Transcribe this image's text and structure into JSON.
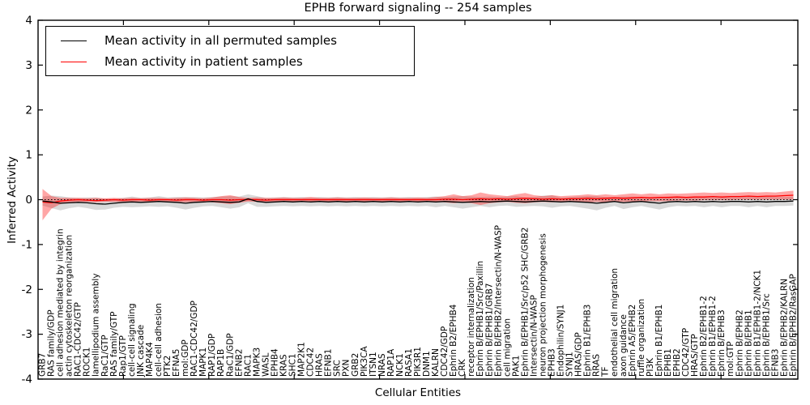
{
  "window": {
    "description": "matplotlib-style line chart figure"
  },
  "legend": {
    "permuted_label": "Mean activity in all permuted samples",
    "patient_label": "Mean activity in patient samples"
  },
  "colors": {
    "permuted_line": "#000000",
    "patient_line": "#ff0000",
    "permuted_band": "rgba(0,0,0,0.15)",
    "patient_band": "rgba(255,0,0,0.35)",
    "axis": "#000000",
    "background": "#ffffff"
  },
  "chart_data": {
    "type": "line",
    "title": "EPHB forward signaling -- 254 samples",
    "xlabel": "Cellular Entities",
    "ylabel": "Inferred Activity",
    "ylim": [
      -4,
      4
    ],
    "yticks": [
      -4,
      -3,
      -2,
      -1,
      0,
      1,
      2,
      3,
      4
    ],
    "grid": false,
    "zero_line_dotted": true,
    "legend_position": "upper left",
    "x_tick_label_rotation": 90,
    "categories": [
      "GRB7",
      "RAS family/GDP",
      "cell adhesion mediated by integrin",
      "actin cytoskeleton reorganization",
      "RAC1-CDC42/GTP",
      "ROCK1",
      "lamellipodium assembly",
      "RaC1/GTP",
      "RAS family/GTP",
      "Rap1/GTP",
      "cell-cell signaling",
      "JNK cascade",
      "MAP4K4",
      "cell-cell adhesion",
      "PTK2",
      "EFNA5",
      "mol:GDP",
      "RAC1-CDC42/GDP",
      "MAPK1",
      "RAP1/GDP",
      "RAP1B",
      "RaC1/GDP",
      "EFNB2",
      "RAC1",
      "MAPK3",
      "WASL",
      "EPHB4",
      "KRAS",
      "SHC1",
      "MAP2K1",
      "CDC42",
      "HRAS",
      "EFNB1",
      "SRC",
      "PXN",
      "GRB2",
      "PIK3CA",
      "ITSN1",
      "NRAS",
      "RAP1A",
      "NCK1",
      "RASA1",
      "PIK3R1",
      "DNM1",
      "KALRN",
      "CDC42/GDP",
      "Ephrin B2/EPHB4",
      "CRK",
      "receptor internalization",
      "Ephrin B/EPHB1/Src/Paxillin",
      "Ephrin B/EPHB1/GRB7",
      "Ephrin B/EPHB2/Intersectin/N-WASP",
      "cell migration",
      "PAK1",
      "Ephrin B/EPHB1/Src/p52 SHC/GRB2",
      "Intersectin/N-WASP",
      "neuron projection morphogenesis",
      "EPHB3",
      "Endophilin/SYNJ1",
      "SYNJ1",
      "HRAS/GDP",
      "Ephrin B1/EPHB3",
      "RRAS",
      "TF",
      "endothelial cell migration",
      "axon guidance",
      "Ephrin A5/EPHB2",
      "ruffle organization",
      "PI3K",
      "Ephrin B1/EPHB1",
      "EPHB1",
      "EPHB2",
      "CDC42/GTP",
      "HRAS/GTP",
      "Ephrin B2/EPHB1-2",
      "Ephrin B1/EPHB1-2",
      "Ephrin B/EPHB3",
      "mol:GTP",
      "Ephrin B/EPHB2",
      "Ephrin B/EPHB1",
      "Ephrin B1/EPHB1-2/NCK1",
      "Ephrin B/EPHB1/Src",
      "EFNB3",
      "Ephrin B/EPHB2/KALRN",
      "Ephrin B/EPHB2/RasGAP"
    ],
    "series": [
      {
        "name": "Mean activity in all permuted samples",
        "color": "#000000",
        "band_color": "rgba(0,0,0,0.15)",
        "values": [
          -0.03,
          -0.05,
          -0.08,
          -0.07,
          -0.06,
          -0.07,
          -0.09,
          -0.1,
          -0.08,
          -0.06,
          -0.05,
          -0.06,
          -0.05,
          -0.04,
          -0.05,
          -0.06,
          -0.08,
          -0.06,
          -0.05,
          -0.04,
          -0.05,
          -0.06,
          -0.05,
          0.02,
          -0.04,
          -0.06,
          -0.05,
          -0.04,
          -0.05,
          -0.04,
          -0.05,
          -0.04,
          -0.05,
          -0.04,
          -0.05,
          -0.04,
          -0.05,
          -0.04,
          -0.05,
          -0.04,
          -0.05,
          -0.04,
          -0.05,
          -0.04,
          -0.05,
          -0.04,
          -0.05,
          -0.06,
          -0.05,
          -0.04,
          -0.05,
          -0.04,
          -0.03,
          -0.04,
          -0.05,
          -0.04,
          -0.03,
          -0.04,
          -0.05,
          -0.04,
          -0.05,
          -0.06,
          -0.08,
          -0.06,
          -0.04,
          -0.07,
          -0.05,
          -0.04,
          -0.06,
          -0.08,
          -0.05,
          -0.04,
          -0.05,
          -0.04,
          -0.05,
          -0.04,
          -0.05,
          -0.04,
          -0.04,
          -0.05,
          -0.04,
          -0.05,
          -0.04,
          -0.04,
          -0.03
        ],
        "band_halfwidth": [
          0.1,
          0.14,
          0.16,
          0.12,
          0.1,
          0.12,
          0.14,
          0.12,
          0.1,
          0.1,
          0.12,
          0.1,
          0.1,
          0.12,
          0.1,
          0.12,
          0.14,
          0.12,
          0.1,
          0.1,
          0.12,
          0.14,
          0.12,
          0.1,
          0.12,
          0.1,
          0.1,
          0.1,
          0.1,
          0.1,
          0.1,
          0.1,
          0.1,
          0.1,
          0.1,
          0.1,
          0.1,
          0.1,
          0.1,
          0.1,
          0.1,
          0.1,
          0.1,
          0.1,
          0.12,
          0.1,
          0.12,
          0.14,
          0.12,
          0.1,
          0.12,
          0.1,
          0.1,
          0.12,
          0.1,
          0.1,
          0.12,
          0.14,
          0.1,
          0.1,
          0.12,
          0.14,
          0.16,
          0.12,
          0.1,
          0.14,
          0.12,
          0.1,
          0.12,
          0.14,
          0.12,
          0.1,
          0.1,
          0.1,
          0.12,
          0.1,
          0.12,
          0.1,
          0.1,
          0.12,
          0.1,
          0.12,
          0.1,
          0.1,
          0.1
        ]
      },
      {
        "name": "Mean activity in patient samples",
        "color": "#ff0000",
        "band_color": "rgba(255,0,0,0.35)",
        "values": [
          -0.05,
          -0.07,
          -0.03,
          -0.01,
          0.0,
          -0.01,
          -0.02,
          -0.01,
          0.0,
          -0.01,
          0.0,
          0.0,
          -0.01,
          0.0,
          0.0,
          -0.01,
          0.0,
          0.0,
          -0.01,
          0.0,
          0.0,
          -0.01,
          0.0,
          0.0,
          0.0,
          -0.01,
          0.0,
          0.0,
          0.0,
          0.0,
          0.0,
          0.0,
          0.0,
          0.0,
          0.0,
          0.0,
          0.0,
          0.0,
          0.0,
          0.0,
          0.0,
          0.0,
          0.0,
          0.0,
          0.0,
          0.01,
          0.01,
          0.0,
          0.01,
          0.02,
          0.01,
          0.02,
          0.01,
          0.02,
          0.03,
          0.02,
          0.01,
          0.02,
          0.01,
          0.02,
          0.02,
          0.03,
          0.02,
          0.03,
          0.04,
          0.03,
          0.04,
          0.05,
          0.04,
          0.05,
          0.05,
          0.06,
          0.05,
          0.06,
          0.06,
          0.07,
          0.06,
          0.07,
          0.07,
          0.08,
          0.07,
          0.08,
          0.08,
          0.09,
          0.1
        ],
        "band_hi": [
          0.24,
          0.08,
          0.04,
          0.04,
          0.04,
          0.03,
          0.04,
          0.03,
          0.04,
          0.03,
          0.04,
          0.03,
          0.04,
          0.04,
          0.03,
          0.04,
          0.05,
          0.04,
          0.03,
          0.05,
          0.08,
          0.1,
          0.06,
          0.04,
          0.05,
          0.04,
          0.04,
          0.05,
          0.04,
          0.04,
          0.06,
          0.04,
          0.04,
          0.05,
          0.04,
          0.04,
          0.05,
          0.04,
          0.04,
          0.05,
          0.04,
          0.04,
          0.05,
          0.04,
          0.06,
          0.08,
          0.12,
          0.08,
          0.1,
          0.16,
          0.12,
          0.1,
          0.08,
          0.12,
          0.15,
          0.1,
          0.08,
          0.1,
          0.08,
          0.09,
          0.1,
          0.12,
          0.1,
          0.12,
          0.1,
          0.12,
          0.14,
          0.12,
          0.14,
          0.12,
          0.14,
          0.13,
          0.14,
          0.15,
          0.16,
          0.15,
          0.16,
          0.15,
          0.16,
          0.17,
          0.16,
          0.17,
          0.16,
          0.18,
          0.2
        ],
        "band_lo": [
          -0.46,
          -0.2,
          -0.1,
          -0.06,
          -0.05,
          -0.05,
          -0.06,
          -0.05,
          -0.05,
          -0.05,
          -0.05,
          -0.04,
          -0.05,
          -0.05,
          -0.04,
          -0.05,
          -0.06,
          -0.05,
          -0.05,
          -0.06,
          -0.08,
          -0.1,
          -0.07,
          -0.04,
          -0.05,
          -0.05,
          -0.04,
          -0.05,
          -0.04,
          -0.04,
          -0.05,
          -0.04,
          -0.04,
          -0.05,
          -0.04,
          -0.04,
          -0.05,
          -0.04,
          -0.04,
          -0.05,
          -0.04,
          -0.04,
          -0.05,
          -0.04,
          -0.05,
          -0.06,
          -0.08,
          -0.06,
          -0.08,
          -0.12,
          -0.08,
          -0.06,
          -0.05,
          -0.07,
          -0.08,
          -0.06,
          -0.05,
          -0.06,
          -0.05,
          -0.05,
          -0.05,
          -0.06,
          -0.05,
          -0.06,
          -0.04,
          -0.05,
          -0.04,
          -0.04,
          -0.03,
          -0.04,
          -0.03,
          -0.02,
          -0.02,
          -0.02,
          -0.01,
          -0.01,
          -0.01,
          -0.01,
          0.0,
          0.0,
          0.0,
          0.0,
          0.0,
          0.0,
          0.0
        ]
      }
    ]
  }
}
